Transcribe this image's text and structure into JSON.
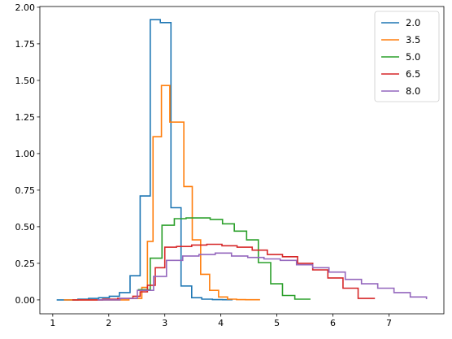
{
  "chart_data": {
    "type": "line",
    "title": "",
    "xlabel": "",
    "ylabel": "",
    "xlim": [
      0.77,
      7.98
    ],
    "ylim": [
      -0.095,
      2.005
    ],
    "grid": false,
    "legend_placement": "top-right",
    "x_ticks": [
      {
        "value": 1,
        "label": "1"
      },
      {
        "value": 2,
        "label": "2"
      },
      {
        "value": 3,
        "label": "3"
      },
      {
        "value": 4,
        "label": "4"
      },
      {
        "value": 5,
        "label": "5"
      },
      {
        "value": 6,
        "label": "6"
      },
      {
        "value": 7,
        "label": "7"
      }
    ],
    "y_ticks": [
      {
        "value": 0.0,
        "label": "0.00"
      },
      {
        "value": 0.25,
        "label": "0.25"
      },
      {
        "value": 0.5,
        "label": "0.50"
      },
      {
        "value": 0.75,
        "label": "0.75"
      },
      {
        "value": 1.0,
        "label": "1.00"
      },
      {
        "value": 1.25,
        "label": "1.25"
      },
      {
        "value": 1.5,
        "label": "1.50"
      },
      {
        "value": 1.75,
        "label": "1.75"
      },
      {
        "value": 2.0,
        "label": "2.00"
      }
    ],
    "series": [
      {
        "name": "2.0",
        "color": "#1f77b4",
        "step": "post",
        "x": [
          1.07,
          1.27,
          1.45,
          1.64,
          1.82,
          2.01,
          2.19,
          2.38,
          2.56,
          2.74,
          2.92,
          3.11,
          3.29,
          3.48,
          3.66,
          3.85,
          4.03,
          4.21
        ],
        "y": [
          0.0,
          0.0,
          0.005,
          0.01,
          0.015,
          0.025,
          0.05,
          0.165,
          0.71,
          1.915,
          1.895,
          0.63,
          0.095,
          0.015,
          0.005,
          0.002,
          0.001,
          0.001
        ]
      },
      {
        "name": "3.5",
        "color": "#ff7f0e",
        "step": "post",
        "x": [
          1.2,
          1.44,
          1.67,
          1.9,
          2.13,
          2.36,
          2.59,
          2.69,
          2.79,
          2.94,
          3.09,
          3.19,
          3.34,
          3.49,
          3.64,
          3.8,
          3.96,
          4.12,
          4.28,
          4.44,
          4.7
        ],
        "y": [
          0.0,
          0.0,
          0.0,
          0.0,
          0.0,
          0.01,
          0.085,
          0.4,
          1.115,
          1.465,
          1.215,
          1.215,
          0.775,
          0.41,
          0.175,
          0.065,
          0.02,
          0.005,
          0.002,
          0.001,
          0.001
        ]
      },
      {
        "name": "5.0",
        "color": "#2ca02c",
        "step": "post",
        "x": [
          2.52,
          2.74,
          2.95,
          3.17,
          3.38,
          3.6,
          3.81,
          4.03,
          4.24,
          4.46,
          4.67,
          4.89,
          5.1,
          5.32,
          5.6
        ],
        "y": [
          0.07,
          0.285,
          0.51,
          0.555,
          0.56,
          0.56,
          0.55,
          0.52,
          0.47,
          0.41,
          0.255,
          0.11,
          0.03,
          0.005,
          0.005
        ]
      },
      {
        "name": "6.5",
        "color": "#d62728",
        "step": "post",
        "x": [
          1.35,
          1.62,
          1.89,
          2.16,
          2.43,
          2.56,
          2.69,
          2.83,
          3.0,
          3.21,
          3.48,
          3.75,
          4.02,
          4.29,
          4.56,
          4.83,
          5.1,
          5.37,
          5.64,
          5.91,
          6.18,
          6.45,
          6.75
        ],
        "y": [
          0.0,
          0.0,
          0.005,
          0.01,
          0.025,
          0.055,
          0.1,
          0.22,
          0.36,
          0.365,
          0.375,
          0.38,
          0.37,
          0.36,
          0.34,
          0.31,
          0.295,
          0.25,
          0.205,
          0.15,
          0.08,
          0.01,
          0.01
        ]
      },
      {
        "name": "8.0",
        "color": "#9467bd",
        "step": "post",
        "x": [
          1.8,
          2.2,
          2.51,
          2.8,
          3.03,
          3.32,
          3.61,
          3.9,
          4.19,
          4.48,
          4.77,
          5.06,
          5.35,
          5.64,
          5.93,
          6.22,
          6.51,
          6.8,
          7.09,
          7.38,
          7.67
        ],
        "y": [
          0.0,
          0.01,
          0.065,
          0.16,
          0.27,
          0.3,
          0.31,
          0.32,
          0.3,
          0.29,
          0.28,
          0.27,
          0.24,
          0.22,
          0.19,
          0.14,
          0.11,
          0.08,
          0.05,
          0.02,
          0.005
        ]
      }
    ]
  }
}
